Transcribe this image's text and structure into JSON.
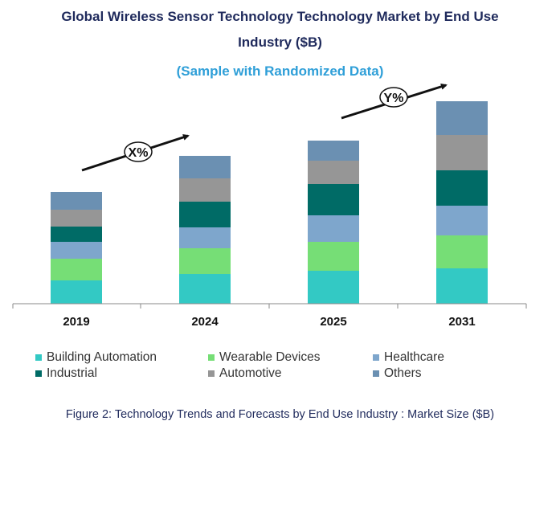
{
  "title_line1": "Global Wireless Sensor Technology Technology Market by End Use",
  "title_line2": "Industry ($B)",
  "subtitle": "(Sample with Randomized Data)",
  "caption": "Figure 2: Technology  Trends  and Forecasts by  End Use Industry   : Market Size ($B)",
  "annotations": {
    "cagr1": "X%",
    "cagr2": "Y%"
  },
  "colors": {
    "Building Automation": "#33c9c4",
    "Wearable Devices": "#76de76",
    "Healthcare": "#7ea6cc",
    "Industrial": "#006b66",
    "Automotive": "#969696",
    "Others": "#6b90b2"
  },
  "chart_data": {
    "type": "bar",
    "stacked": true,
    "title": "Global Wireless Sensor Technology Technology Market by End Use Industry ($B)",
    "categories": [
      "2019",
      "2024",
      "2025",
      "2031"
    ],
    "series": [
      {
        "name": "Building Automation",
        "values": [
          2.9,
          3.7,
          4.1,
          4.4
        ]
      },
      {
        "name": "Wearable Devices",
        "values": [
          2.7,
          3.2,
          3.6,
          4.1
        ]
      },
      {
        "name": "Healthcare",
        "values": [
          2.1,
          2.6,
          3.3,
          3.7
        ]
      },
      {
        "name": "Industrial",
        "values": [
          1.9,
          3.2,
          3.9,
          4.4
        ]
      },
      {
        "name": "Automotive",
        "values": [
          2.1,
          2.9,
          2.9,
          4.4
        ]
      },
      {
        "name": "Others",
        "values": [
          2.2,
          2.8,
          2.5,
          4.2
        ]
      }
    ],
    "ylim": [
      0,
      27
    ],
    "xlabel": "",
    "ylabel": "",
    "legend": "bottom"
  }
}
